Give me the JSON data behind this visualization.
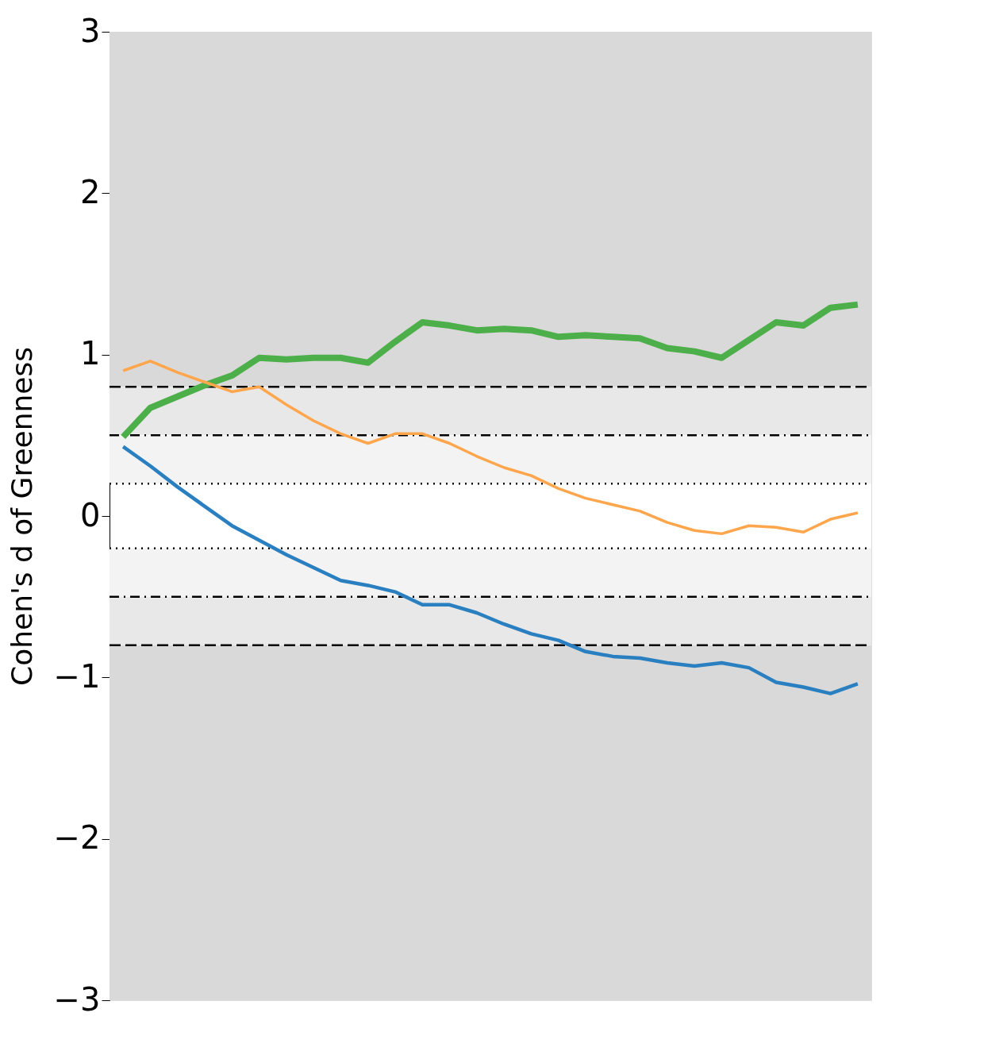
{
  "chart_data": {
    "type": "line",
    "ylabel": "Cohen's d of Greenness",
    "categories": [
      null,
      null,
      null,
      null,
      null,
      null,
      null,
      null,
      null,
      null,
      null,
      null,
      null,
      null,
      null,
      null,
      null,
      null,
      null,
      null,
      null,
      null,
      null,
      null,
      null,
      null,
      null,
      null
    ],
    "series": [
      {
        "color": "#4daf4a",
        "values": [
          0.49,
          0.67,
          0.74,
          0.81,
          0.87,
          0.98,
          0.97,
          0.98,
          0.98,
          0.95,
          1.08,
          1.2,
          1.18,
          1.15,
          1.16,
          1.15,
          1.11,
          1.12,
          1.11,
          1.1,
          1.04,
          1.02,
          0.98,
          1.09,
          1.2,
          1.18,
          1.29,
          1.31
        ]
      },
      {
        "color": "#ffa64d",
        "values": [
          0.9,
          0.96,
          0.89,
          0.83,
          0.77,
          0.8,
          0.69,
          0.59,
          0.51,
          0.45,
          0.51,
          0.51,
          0.45,
          0.37,
          0.3,
          0.25,
          0.17,
          0.11,
          0.07,
          0.03,
          -0.04,
          -0.09,
          -0.11,
          -0.06,
          -0.07,
          -0.1,
          -0.02,
          0.02
        ]
      },
      {
        "color": "#2a7fc1",
        "values": [
          0.43,
          0.31,
          0.18,
          0.06,
          -0.06,
          -0.15,
          -0.24,
          -0.32,
          -0.4,
          -0.43,
          -0.47,
          -0.55,
          -0.55,
          -0.6,
          -0.67,
          -0.73,
          -0.77,
          -0.84,
          -0.87,
          -0.88,
          -0.91,
          -0.93,
          -0.91,
          -0.94,
          -1.03,
          -1.06,
          -1.1,
          -1.04
        ]
      }
    ],
    "ylim": [
      -3,
      3
    ],
    "yticks": [
      {
        "value": -3,
        "label": "−3"
      },
      {
        "value": -2,
        "label": "−2"
      },
      {
        "value": -1,
        "label": "−1"
      },
      0,
      1,
      2,
      3
    ],
    "tick_labels": "y",
    "grid": false,
    "legend": false,
    "bands": [
      {
        "axis": "y",
        "from": 0.8,
        "to": 3,
        "color": "#d9d9d9"
      },
      {
        "axis": "y",
        "from": -3,
        "to": -0.8,
        "color": "#d9d9d9"
      },
      {
        "axis": "y",
        "from": 0.5,
        "to": 0.8,
        "color": "#e8e8e8"
      },
      {
        "axis": "y",
        "from": -0.8,
        "to": -0.5,
        "color": "#e8e8e8"
      },
      {
        "axis": "y",
        "from": 0.2,
        "to": 0.5,
        "color": "#f3f3f3"
      },
      {
        "axis": "y",
        "from": -0.5,
        "to": -0.2,
        "color": "#f3f3f3"
      }
    ],
    "ref_lines": [
      {
        "axis": "y",
        "value": 0.8,
        "line_style": "dashed"
      },
      {
        "axis": "y",
        "value": -0.8,
        "line_style": "dashed"
      },
      {
        "axis": "y",
        "value": 0.5,
        "line_style": "dashdot"
      },
      {
        "axis": "y",
        "value": -0.5,
        "line_style": "dashdot"
      },
      {
        "axis": "y",
        "value": 0.2,
        "line_style": "dotted"
      },
      {
        "axis": "y",
        "value": -0.2,
        "line_style": "dotted"
      }
    ]
  }
}
